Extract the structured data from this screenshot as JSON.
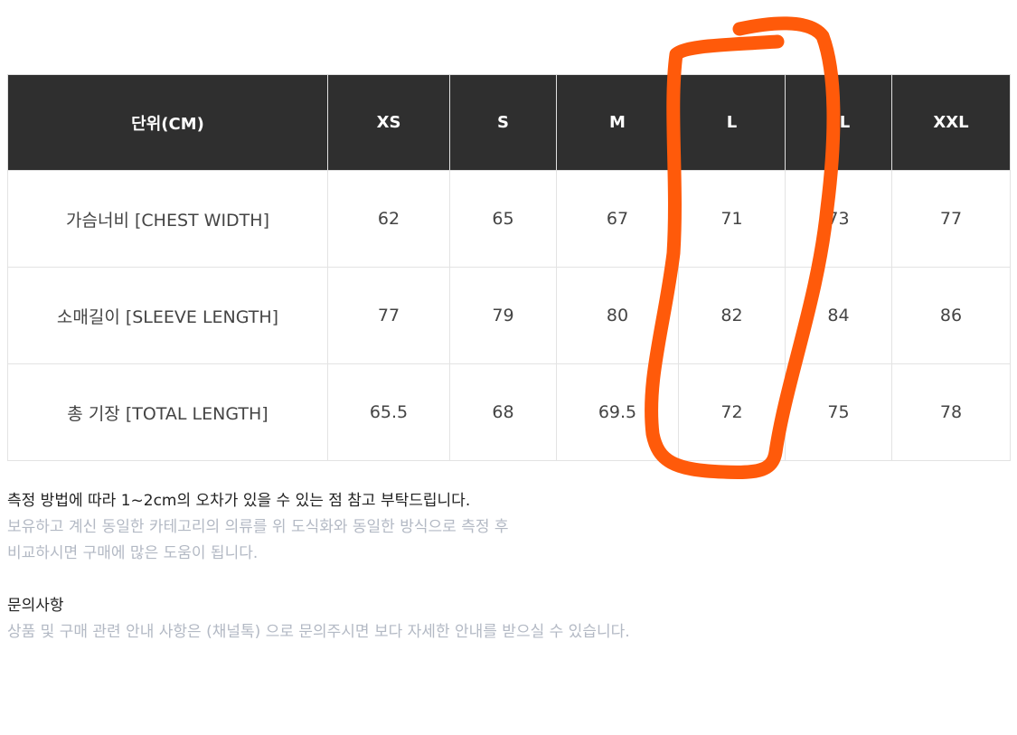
{
  "table": {
    "headers": [
      "단위(CM)",
      "XS",
      "S",
      "M",
      "L",
      "XL",
      "XXL"
    ],
    "rows": [
      {
        "label": "가슴너비 [CHEST WIDTH]",
        "values": [
          "62",
          "65",
          "67",
          "71",
          "73",
          "77"
        ]
      },
      {
        "label": "소매길이 [SLEEVE LENGTH]",
        "values": [
          "77",
          "79",
          "80",
          "82",
          "84",
          "86"
        ]
      },
      {
        "label": "총 기장 [TOTAL LENGTH]",
        "values": [
          "65.5",
          "68",
          "69.5",
          "72",
          "75",
          "78"
        ]
      }
    ]
  },
  "notes": {
    "line1": "측정 방법에 따라 1~2cm의 오차가 있을 수 있는 점 참고 부탁드립니다.",
    "line2": "보유하고 계신 동일한 카테고리의 의류를 위 도식화와 동일한 방식으로 측정 후",
    "line3": "비교하시면 구매에 많은 도움이 됩니다.",
    "inquiry_title": "문의사항",
    "inquiry_text": "상품 및 구매 관련 안내 사항은 (채널톡) 으로 문의주시면 보다 자세한 안내를 받으실 수 있습니다."
  },
  "annotation_color": "#ff5a0a"
}
